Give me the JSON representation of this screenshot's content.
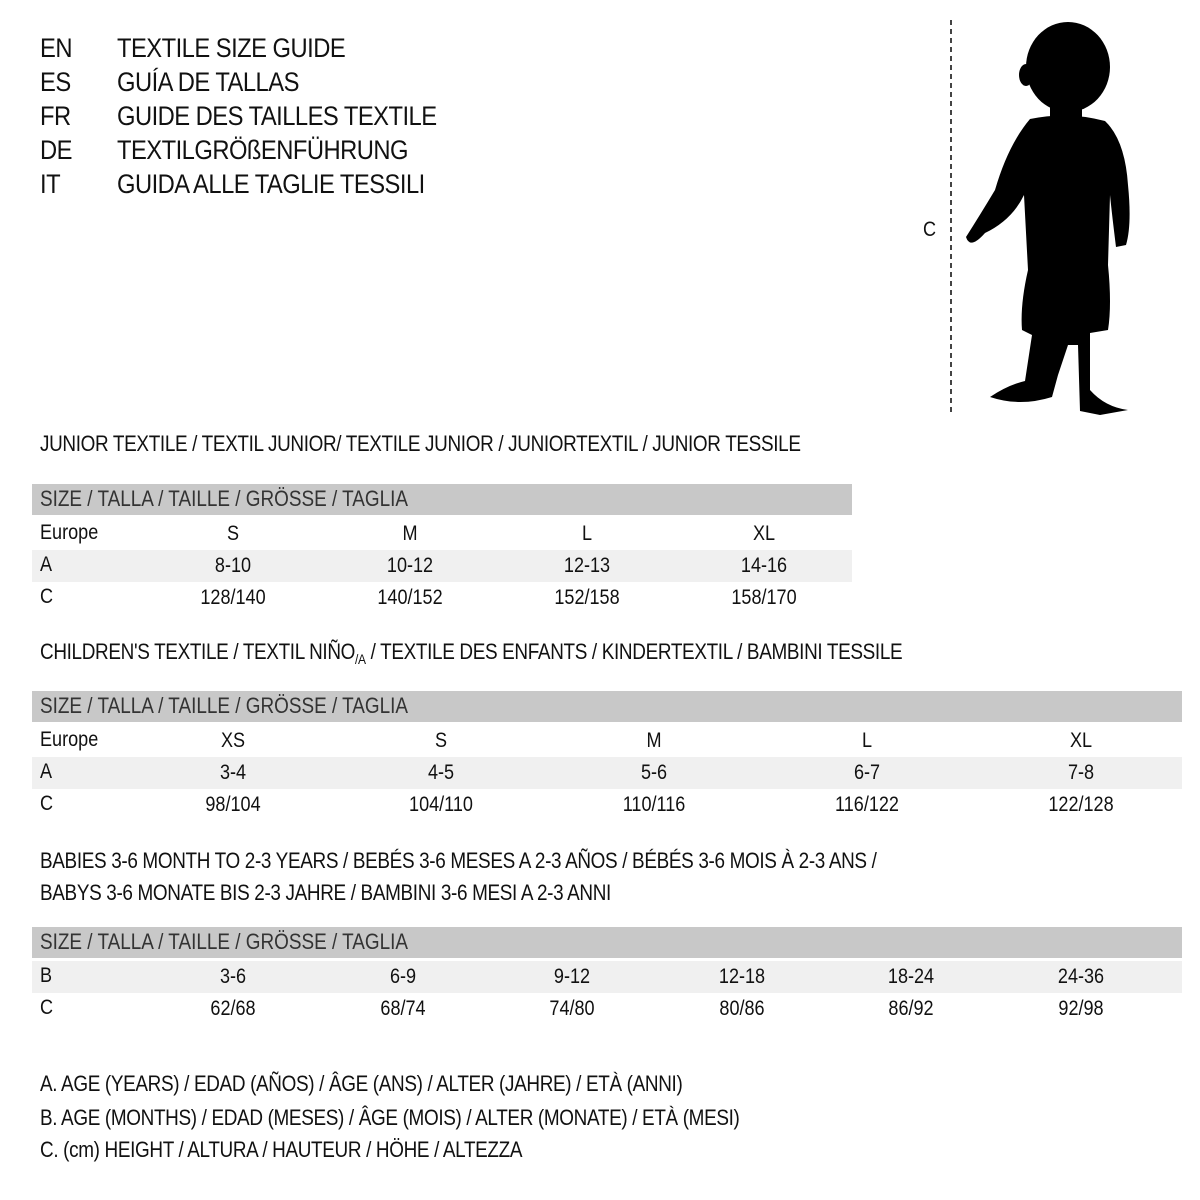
{
  "titles": [
    {
      "code": "EN",
      "text": "TEXTILE SIZE GUIDE"
    },
    {
      "code": "ES",
      "text": "GUÍA DE TALLAS"
    },
    {
      "code": "FR",
      "text": "GUIDE DES TAILLES TEXTILE"
    },
    {
      "code": "DE",
      "text": "TEXTILGRÖßENFÜHRUNG"
    },
    {
      "code": "IT",
      "text": "GUIDA ALLE TAGLIE TESSILI"
    }
  ],
  "figure": {
    "measure_label": "C",
    "icon": "child-silhouette-icon"
  },
  "junior": {
    "heading": "JUNIOR TEXTILE / TEXTIL JUNIOR/ TEXTILE JUNIOR / JUNIORTEXTIL / JUNIOR TESSILE",
    "header": "SIZE / TALLA / TAILLE / GRÖSSE / TAGLIA",
    "rows": [
      {
        "label": "Europe",
        "values": [
          "S",
          "M",
          "L",
          "XL"
        ]
      },
      {
        "label": "A",
        "values": [
          "8-10",
          "10-12",
          "12-13",
          "14-16"
        ]
      },
      {
        "label": "C",
        "values": [
          "128/140",
          "140/152",
          "152/158",
          "158/170"
        ]
      }
    ]
  },
  "children": {
    "heading_pre": "CHILDREN'S TEXTILE / TEXTIL NIÑO",
    "heading_sub": "/A",
    "heading_post": " / TEXTILE DES ENFANTS / KINDERTEXTIL / BAMBINI TESSILE",
    "header": "SIZE / TALLA / TAILLE / GRÖSSE / TAGLIA",
    "rows": [
      {
        "label": "Europe",
        "values": [
          "XS",
          "S",
          "M",
          "L",
          "XL"
        ]
      },
      {
        "label": "A",
        "values": [
          "3-4",
          "4-5",
          "5-6",
          "6-7",
          "7-8"
        ]
      },
      {
        "label": "C",
        "values": [
          "98/104",
          "104/110",
          "110/116",
          "116/122",
          "122/128"
        ]
      }
    ]
  },
  "babies": {
    "heading_line1": "BABIES 3-6 MONTH TO 2-3 YEARS / BEBÉS 3-6 MESES A 2-3 AÑOS / BÉBÉS 3-6 MOIS À 2-3 ANS /",
    "heading_line2": "BABYS 3-6 MONATE BIS 2-3 JAHRE / BAMBINI 3-6 MESI A 2-3 ANNI",
    "header": "SIZE / TALLA / TAILLE / GRÖSSE / TAGLIA",
    "rows": [
      {
        "label": "B",
        "values": [
          "3-6",
          "6-9",
          "9-12",
          "12-18",
          "18-24",
          "24-36"
        ]
      },
      {
        "label": "C",
        "values": [
          "62/68",
          "68/74",
          "74/80",
          "80/86",
          "86/92",
          "92/98"
        ]
      }
    ]
  },
  "legend": [
    "A. AGE (YEARS) / EDAD (AÑOS) / ÂGE (ANS) / ALTER (JAHRE) / ETÀ (ANNI)",
    "B. AGE (MONTHS) / EDAD (MESES) / ÂGE (MOIS) / ALTER (MONATE) / ETÀ (MESI)",
    "C. (cm) HEIGHT / ALTURA / HAUTEUR / HÖHE / ALTEZZA"
  ],
  "colors": {
    "header_bg": "#c8c8c8",
    "shade_bg": "#f0f0f0",
    "text": "#111111"
  }
}
